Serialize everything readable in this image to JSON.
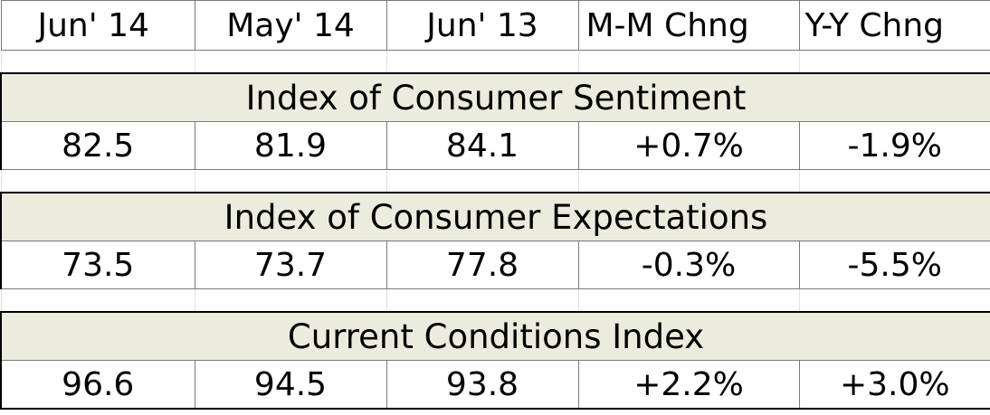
{
  "columns": [
    "Jun' 14",
    "May' 14",
    "Jun' 13",
    "M-M Chng",
    "Y-Y Chng"
  ],
  "sections": [
    {
      "title": "Index of Consumer Sentiment",
      "values": [
        "82.5",
        "81.9",
        "84.1",
        "+0.7%",
        "-1.9%"
      ]
    },
    {
      "title": "Index of Consumer Expectations",
      "values": [
        "73.5",
        "73.7",
        "77.8",
        "-0.3%",
        "-5.5%"
      ]
    },
    {
      "title": "Current Conditions Index",
      "values": [
        "96.6",
        "94.5",
        "93.8",
        "+2.2%",
        "+3.0%"
      ]
    }
  ],
  "colors": {
    "section_title_background": "#ececde",
    "grid_line": "#7a7a7a"
  }
}
